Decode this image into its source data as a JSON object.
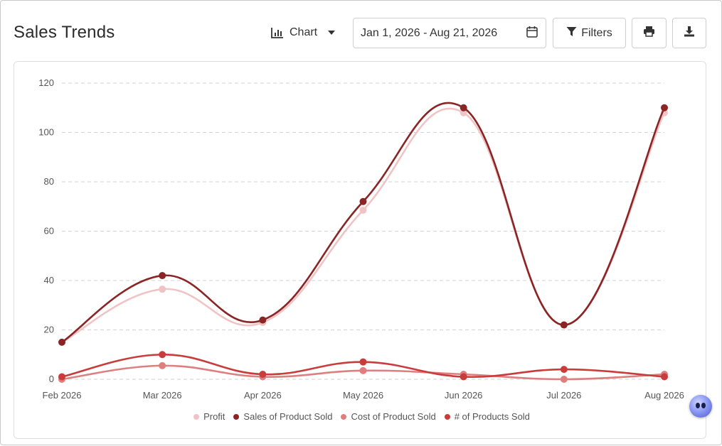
{
  "header": {
    "title": "Sales Trends",
    "view_label": "Chart",
    "date_range": "Jan 1, 2026 - Aug 21, 2026",
    "filters_label": "Filters"
  },
  "icons": {
    "view": "bar-chart-icon",
    "dropdown": "caret-down-icon",
    "calendar": "calendar-icon",
    "filter": "funnel-icon",
    "print": "printer-icon",
    "download": "download-icon",
    "assistant": "assistant-bot-icon"
  },
  "chart_data": {
    "type": "line",
    "categories": [
      "Feb 2026",
      "Mar 2026",
      "Apr 2026",
      "May 2026",
      "Jun 2026",
      "Jul 2026",
      "Aug 2026"
    ],
    "ylim": [
      0,
      120
    ],
    "yticks": [
      0,
      20,
      40,
      60,
      80,
      100,
      120
    ],
    "grid": true,
    "legend_position": "bottom",
    "series": [
      {
        "name": "Profit",
        "color": "#f0c4c4",
        "values": [
          15,
          36.5,
          23,
          68.5,
          108,
          22,
          108
        ]
      },
      {
        "name": "Sales of Product Sold",
        "color": "#8b2525",
        "values": [
          15,
          42,
          24,
          72,
          110,
          22,
          110
        ]
      },
      {
        "name": "Cost of Product Sold",
        "color": "#de7f7f",
        "values": [
          0,
          5.5,
          1,
          3.5,
          2,
          0,
          2
        ]
      },
      {
        "name": "# of Products Sold",
        "color": "#c93c3c",
        "values": [
          1,
          10,
          2,
          7,
          1,
          4,
          1
        ]
      }
    ]
  }
}
